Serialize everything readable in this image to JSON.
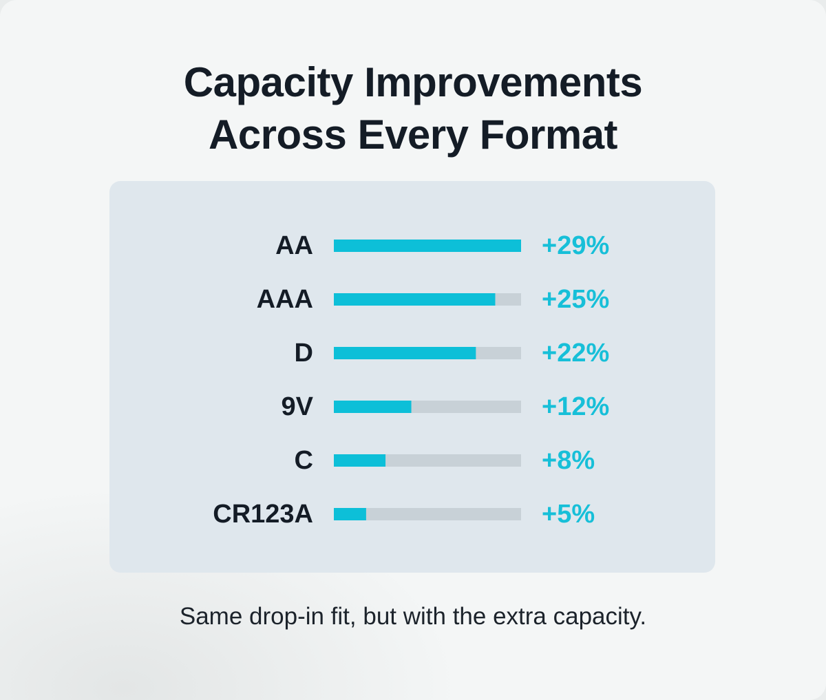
{
  "title_lines": [
    "Capacity Improvements",
    "Across Every Format"
  ],
  "footnote": "Same drop-in fit, but with the extra capacity.",
  "colors": {
    "bar_fill": "#0dbfd8",
    "bar_track": "#c8d1d7",
    "value_text": "#17bfd8",
    "label_text": "#141c26",
    "panel_bg": "#dfe7ed"
  },
  "chart_data": {
    "type": "bar",
    "orientation": "horizontal",
    "categories": [
      "AA",
      "AAA",
      "D",
      "9V",
      "C",
      "CR123A"
    ],
    "values": [
      29,
      25,
      22,
      12,
      8,
      5
    ],
    "value_labels": [
      "+29%",
      "+25%",
      "+22%",
      "+12%",
      "+8%",
      "+5%"
    ],
    "unit": "%",
    "xlim": [
      0,
      29
    ],
    "grid": false,
    "legend": "none"
  }
}
